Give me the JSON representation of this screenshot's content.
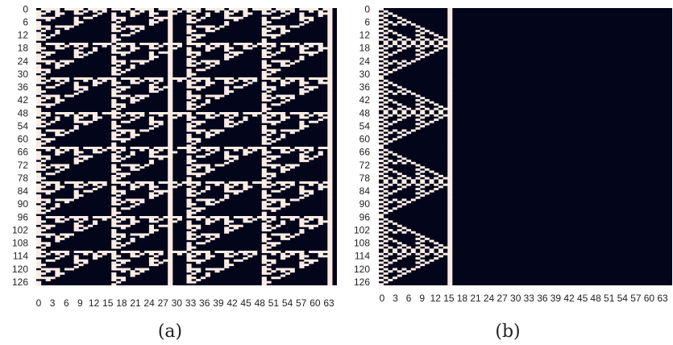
{
  "colors": {
    "on": "#fbece4",
    "off": "#03051a"
  },
  "chart_data": [
    {
      "type": "heatmap",
      "title": "",
      "caption": "(a)",
      "rows": 128,
      "cols": 64,
      "description_of_values": "binary cellular automaton state: 1 = light cell, 0 = dark cell",
      "y_ticks": [
        "0",
        "6",
        "12",
        "18",
        "24",
        "30",
        "36",
        "42",
        "48",
        "54",
        "60",
        "66",
        "72",
        "78",
        "84",
        "90",
        "96",
        "102",
        "108",
        "114",
        "120",
        "126"
      ],
      "x_ticks": [
        "0",
        "3",
        "6",
        "9",
        "12",
        "15",
        "18",
        "21",
        "24",
        "27",
        "30",
        "33",
        "36",
        "39",
        "42",
        "45",
        "48",
        "51",
        "54",
        "57",
        "60",
        "63"
      ],
      "cell_rule": "pascal",
      "light_columns": [
        28,
        62
      ],
      "dark_columns": [
        63
      ]
    },
    {
      "type": "heatmap",
      "title": "",
      "caption": "(b)",
      "rows": 128,
      "cols": 64,
      "description_of_values": "binary cellular automaton state: 1 = light cell, 0 = dark cell",
      "y_ticks": [
        "0",
        "6",
        "12",
        "18",
        "24",
        "30",
        "36",
        "42",
        "48",
        "54",
        "60",
        "66",
        "72",
        "78",
        "84",
        "90",
        "96",
        "102",
        "108",
        "114",
        "120",
        "126"
      ],
      "x_ticks": [
        "0",
        "3",
        "6",
        "9",
        "12",
        "15",
        "18",
        "21",
        "24",
        "27",
        "30",
        "33",
        "36",
        "39",
        "42",
        "45",
        "48",
        "51",
        "54",
        "57",
        "60",
        "63"
      ],
      "cell_rule": "sierpinski16",
      "pattern_width": 16,
      "light_columns": [
        15
      ],
      "dark_columns": []
    }
  ]
}
